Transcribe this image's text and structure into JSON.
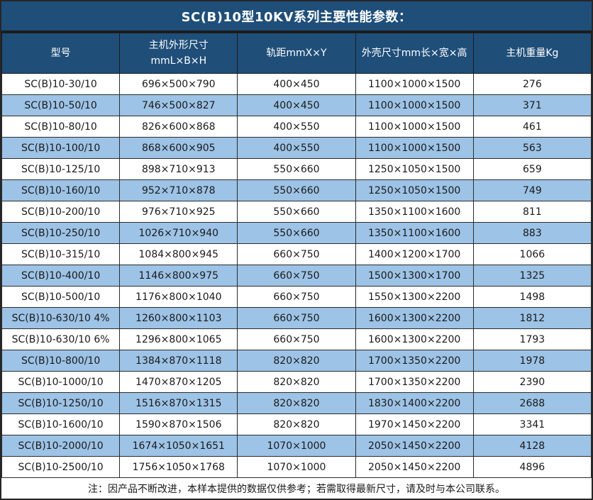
{
  "title": "SC(B)10型10KV系列主要性能参数：",
  "table": {
    "columns": [
      "型号",
      "主机外形尺寸\nmmL×B×H",
      "轨距mmX×Y",
      "外壳尺寸mm长×宽×高",
      "主机重量Kg"
    ],
    "rows": [
      [
        "SC(B)10-30/10",
        "696×500×790",
        "400×450",
        "1100×1000×1500",
        "276"
      ],
      [
        "SC(B)10-50/10",
        "746×500×827",
        "400×450",
        "1100×1000×1500",
        "371"
      ],
      [
        "SC(B)10-80/10",
        "826×600×868",
        "400×550",
        "1100×1000×1500",
        "461"
      ],
      [
        "SC(B)10-100/10",
        "868×600×905",
        "400×550",
        "1100×1000×1500",
        "563"
      ],
      [
        "SC(B)10-125/10",
        "898×710×913",
        "550×660",
        "1250×1050×1500",
        "659"
      ],
      [
        "SC(B)10-160/10",
        "952×710×878",
        "550×660",
        "1250×1050×1500",
        "749"
      ],
      [
        "SC(B)10-200/10",
        "976×710×925",
        "550×660",
        "1350×1100×1600",
        "811"
      ],
      [
        "SC(B)10-250/10",
        "1026×710×940",
        "550×660",
        "1350×1100×1600",
        "883"
      ],
      [
        "SC(B)10-315/10",
        "1084×800×945",
        "660×750",
        "1400×1200×1700",
        "1066"
      ],
      [
        "SC(B)10-400/10",
        "1146×800×975",
        "660×750",
        "1500×1300×1700",
        "1325"
      ],
      [
        "SC(B)10-500/10",
        "1176×800×1040",
        "660×750",
        "1550×1300×2200",
        "1498"
      ],
      [
        "SC(B)10-630/10 4%",
        "1260×800×1103",
        "660×750",
        "1600×1300×2200",
        "1812"
      ],
      [
        "SC(B)10-630/10 6%",
        "1296×800×1065",
        "660×750",
        "1600×1300×2200",
        "1793"
      ],
      [
        "SC(B)10-800/10",
        "1384×870×1118",
        "820×820",
        "1700×1350×2200",
        "1978"
      ],
      [
        "SC(B)10-1000/10",
        "1470×870×1205",
        "820×820",
        "1700×1350×2200",
        "2390"
      ],
      [
        "SC(B)10-1250/10",
        "1516×870×1315",
        "820×820",
        "1830×1400×2200",
        "2688"
      ],
      [
        "SC(B)10-1600/10",
        "1590×870×1506",
        "820×820",
        "1970×1450×2200",
        "3341"
      ],
      [
        "SC(B)10-2000/10",
        "1674×1050×1651",
        "1070×1000",
        "2050×1450×2200",
        "4128"
      ],
      [
        "SC(B)10-2500/10",
        "1756×1050×1768",
        "1070×1000",
        "2050×1450×2200",
        "4896"
      ]
    ]
  },
  "footnote": "注：因产品不断改进，本样本提供的数据仅供参考；若需取得最新尺寸，请及时与本公司联系。",
  "colors": {
    "header_bg": "#1F4E79",
    "header_text": "#FFFFFF",
    "row_bg": "#FFFFFF",
    "row_alt_bg": "#9DC3E6",
    "border": "#262626",
    "text": "#1A1A1A"
  }
}
